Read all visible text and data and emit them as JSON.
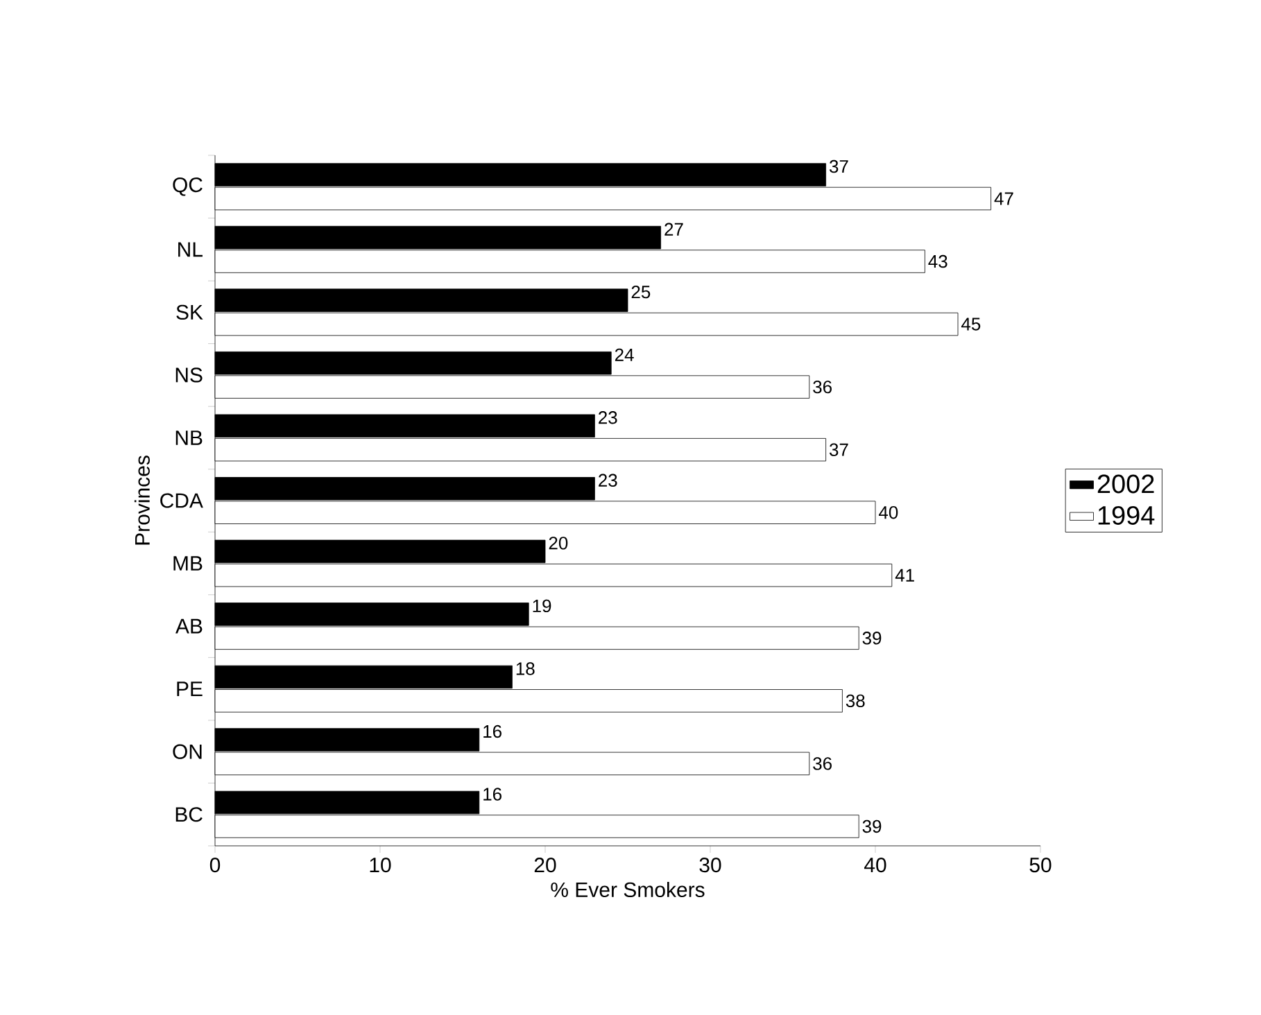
{
  "chart_data": {
    "type": "bar",
    "orientation": "horizontal",
    "xlabel": "% Ever Smokers",
    "ylabel": "Provinces",
    "categories": [
      "QC",
      "NL",
      "SK",
      "NS",
      "NB",
      "CDA",
      "MB",
      "AB",
      "PE",
      "ON",
      "BC"
    ],
    "series": [
      {
        "name": "2002",
        "color": "#000000",
        "values": [
          37,
          27,
          25,
          24,
          23,
          23,
          20,
          19,
          18,
          16,
          16
        ]
      },
      {
        "name": "1994",
        "color": "#ffffff",
        "values": [
          47,
          43,
          45,
          36,
          37,
          40,
          41,
          39,
          38,
          36,
          39
        ]
      }
    ],
    "xlim": [
      0,
      50
    ],
    "xticks": [
      0,
      10,
      20,
      30,
      40,
      50
    ],
    "legend": "right",
    "data_labels": true
  }
}
